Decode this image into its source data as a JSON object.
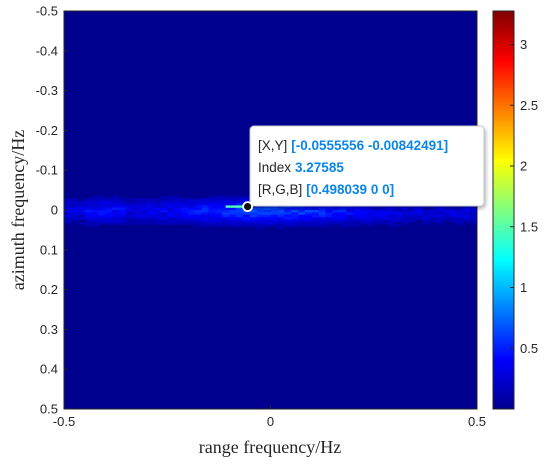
{
  "chart_data": {
    "type": "heatmap",
    "xlabel": "range frequency/Hz",
    "ylabel": "azimuth frequency/Hz",
    "xlim": [
      -0.5,
      0.5
    ],
    "ylim": [
      -0.5,
      0.5
    ],
    "y_direction": "reversed (-0.5 at top, 0.5 at bottom)",
    "x_ticks": [
      "-0.5",
      "0",
      "0.5"
    ],
    "y_ticks": [
      "-0.5",
      "-0.4",
      "-0.3",
      "-0.2",
      "-0.1",
      "0",
      "0.1",
      "0.2",
      "0.3",
      "0.4",
      "0.5"
    ],
    "colormap": "jet",
    "clim": [
      0,
      3.27585
    ],
    "colorbar_ticks": [
      "0.5",
      "1",
      "1.5",
      "2",
      "2.5",
      "3"
    ],
    "background_color": "#00008f",
    "peak": {
      "x": -0.0555556,
      "y": -0.00842491,
      "value": 3.27585
    },
    "datatip": {
      "xy_label": "[X,Y]",
      "xy_value": "[-0.0555556 -0.00842491]",
      "index_label": "Index",
      "index_value": "3.27585",
      "rgb_label": "[R,G,B]",
      "rgb_value": "[0.498039 0 0]"
    }
  }
}
